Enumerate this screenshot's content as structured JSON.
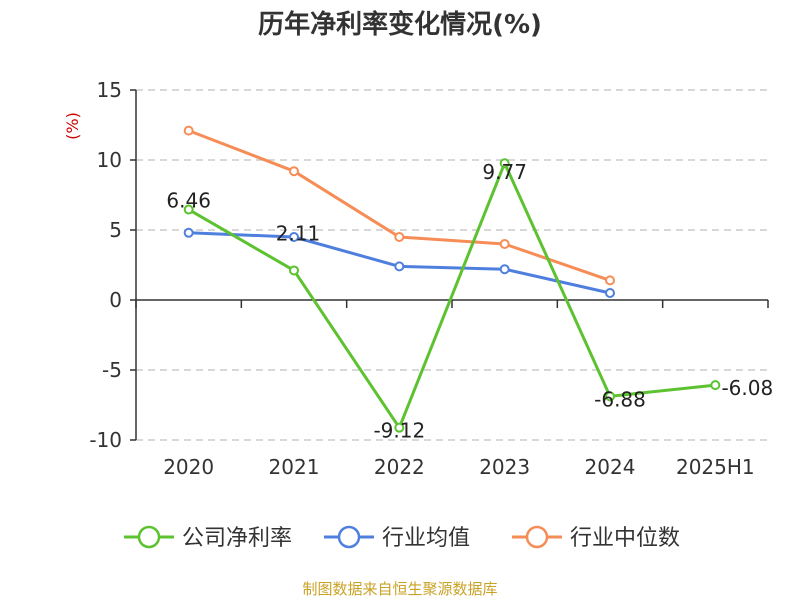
{
  "title": "历年净利率变化情况(%)",
  "source": "制图数据来自恒生聚源数据库",
  "chart_data": {
    "type": "line",
    "title": "历年净利率变化情况(%)",
    "ylabel": "(%)",
    "xlabel": "",
    "categories": [
      "2020",
      "2021",
      "2022",
      "2023",
      "2024",
      "2025H1"
    ],
    "ylim": [
      -10,
      15
    ],
    "yticks": [
      15,
      10,
      5,
      0,
      -5,
      -10
    ],
    "grid": true,
    "legend_position": "bottom",
    "series": [
      {
        "name": "公司净利率",
        "color": "#5cc22f",
        "show_labels": true,
        "values": [
          6.46,
          2.11,
          -9.12,
          9.77,
          -6.88,
          -6.08
        ],
        "labels": [
          "6.46",
          "2.11",
          "-9.12",
          "9.77",
          "-6.88",
          "-6.08"
        ]
      },
      {
        "name": "行业均值",
        "color": "#4f7fde",
        "show_labels": false,
        "values": [
          4.8,
          4.5,
          2.4,
          2.2,
          0.5,
          null
        ]
      },
      {
        "name": "行业中位数",
        "color": "#f68d57",
        "show_labels": false,
        "values": [
          12.1,
          9.2,
          4.5,
          4.0,
          1.4,
          null
        ]
      }
    ],
    "colors": {
      "axis": "#333333",
      "grid": "#cccccc",
      "ylabel": "#cc0000"
    }
  }
}
